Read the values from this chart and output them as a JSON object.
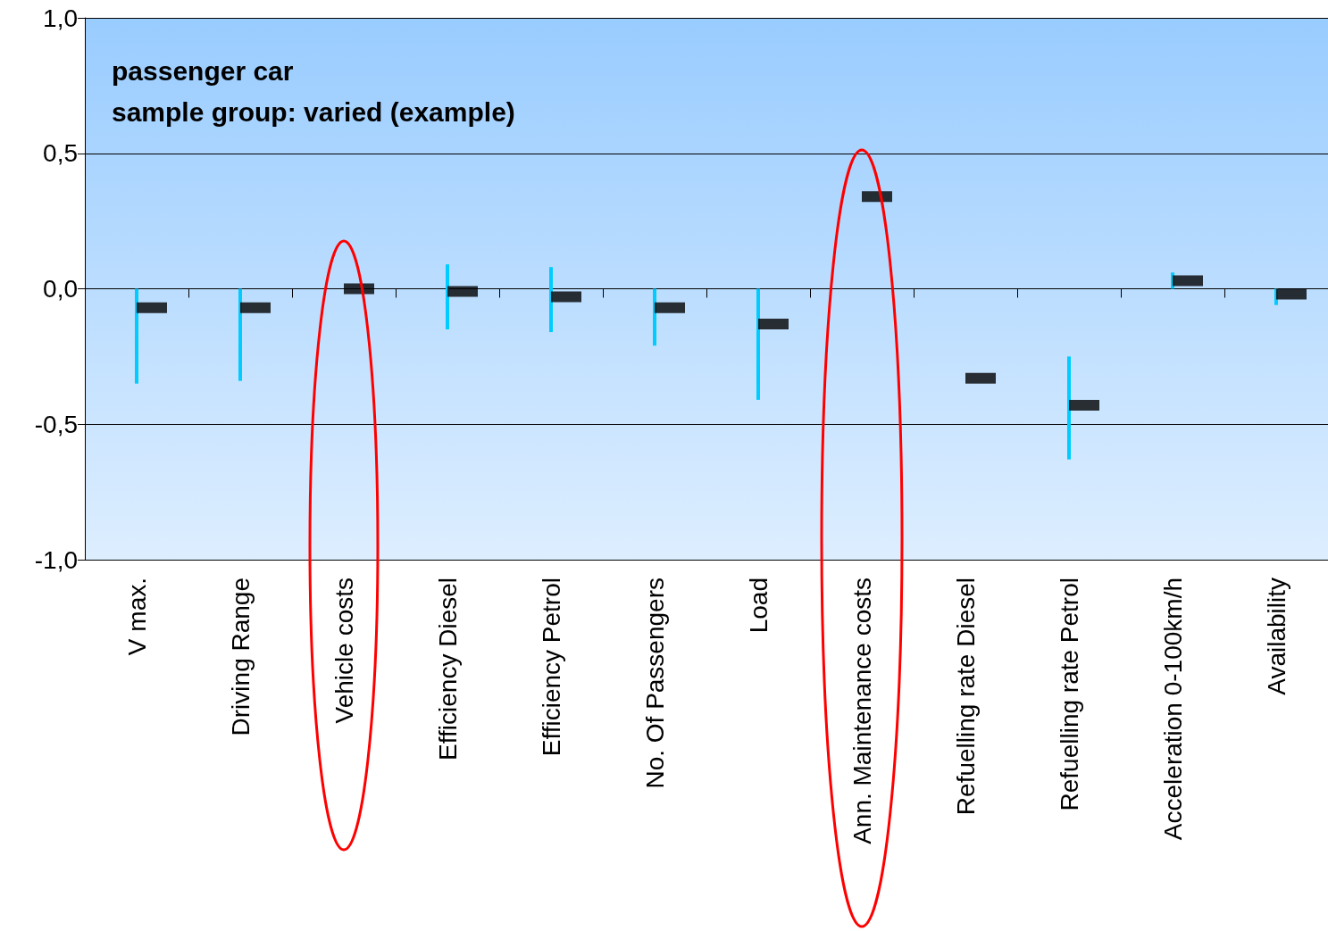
{
  "chart_data": {
    "type": "scatter",
    "annotations": [
      "passenger car",
      "sample group: varied (example)"
    ],
    "categories": [
      "V max.",
      "Driving Range",
      "Vehicle costs",
      "Efficiency Diesel",
      "Efficiency Petrol",
      "No. Of Passengers",
      "Load",
      "Ann. Maintenance costs",
      "Refuelling rate Diesel",
      "Refuelling rate Petrol",
      "Acceleration 0-100km/h",
      "Availability"
    ],
    "series": [
      {
        "color": "#000000",
        "values": [
          -0.07,
          -0.07,
          0.0,
          -0.01,
          -0.03,
          -0.07,
          -0.13,
          0.34,
          -0.33,
          -0.43,
          0.03,
          -0.02
        ],
        "errors": [
          [
            -0.35,
            0.0
          ],
          [
            -0.34,
            0.0
          ],
          null,
          [
            -0.15,
            0.09
          ],
          [
            -0.16,
            0.08
          ],
          [
            -0.21,
            0.0
          ],
          [
            -0.41,
            0.0
          ],
          null,
          null,
          [
            -0.63,
            -0.25
          ],
          [
            0.0,
            0.06
          ],
          [
            -0.06,
            0.0
          ]
        ]
      }
    ],
    "marker": "square",
    "ylim": [
      -1,
      1
    ],
    "yticks": [
      {
        "value": -1,
        "label": "-1,0"
      },
      {
        "value": -0.5,
        "label": "-0,5"
      },
      {
        "value": 0,
        "label": "0,0"
      },
      {
        "value": 0.5,
        "label": "0,5"
      },
      {
        "value": 1,
        "label": "1,0"
      }
    ],
    "grid": "y"
  }
}
